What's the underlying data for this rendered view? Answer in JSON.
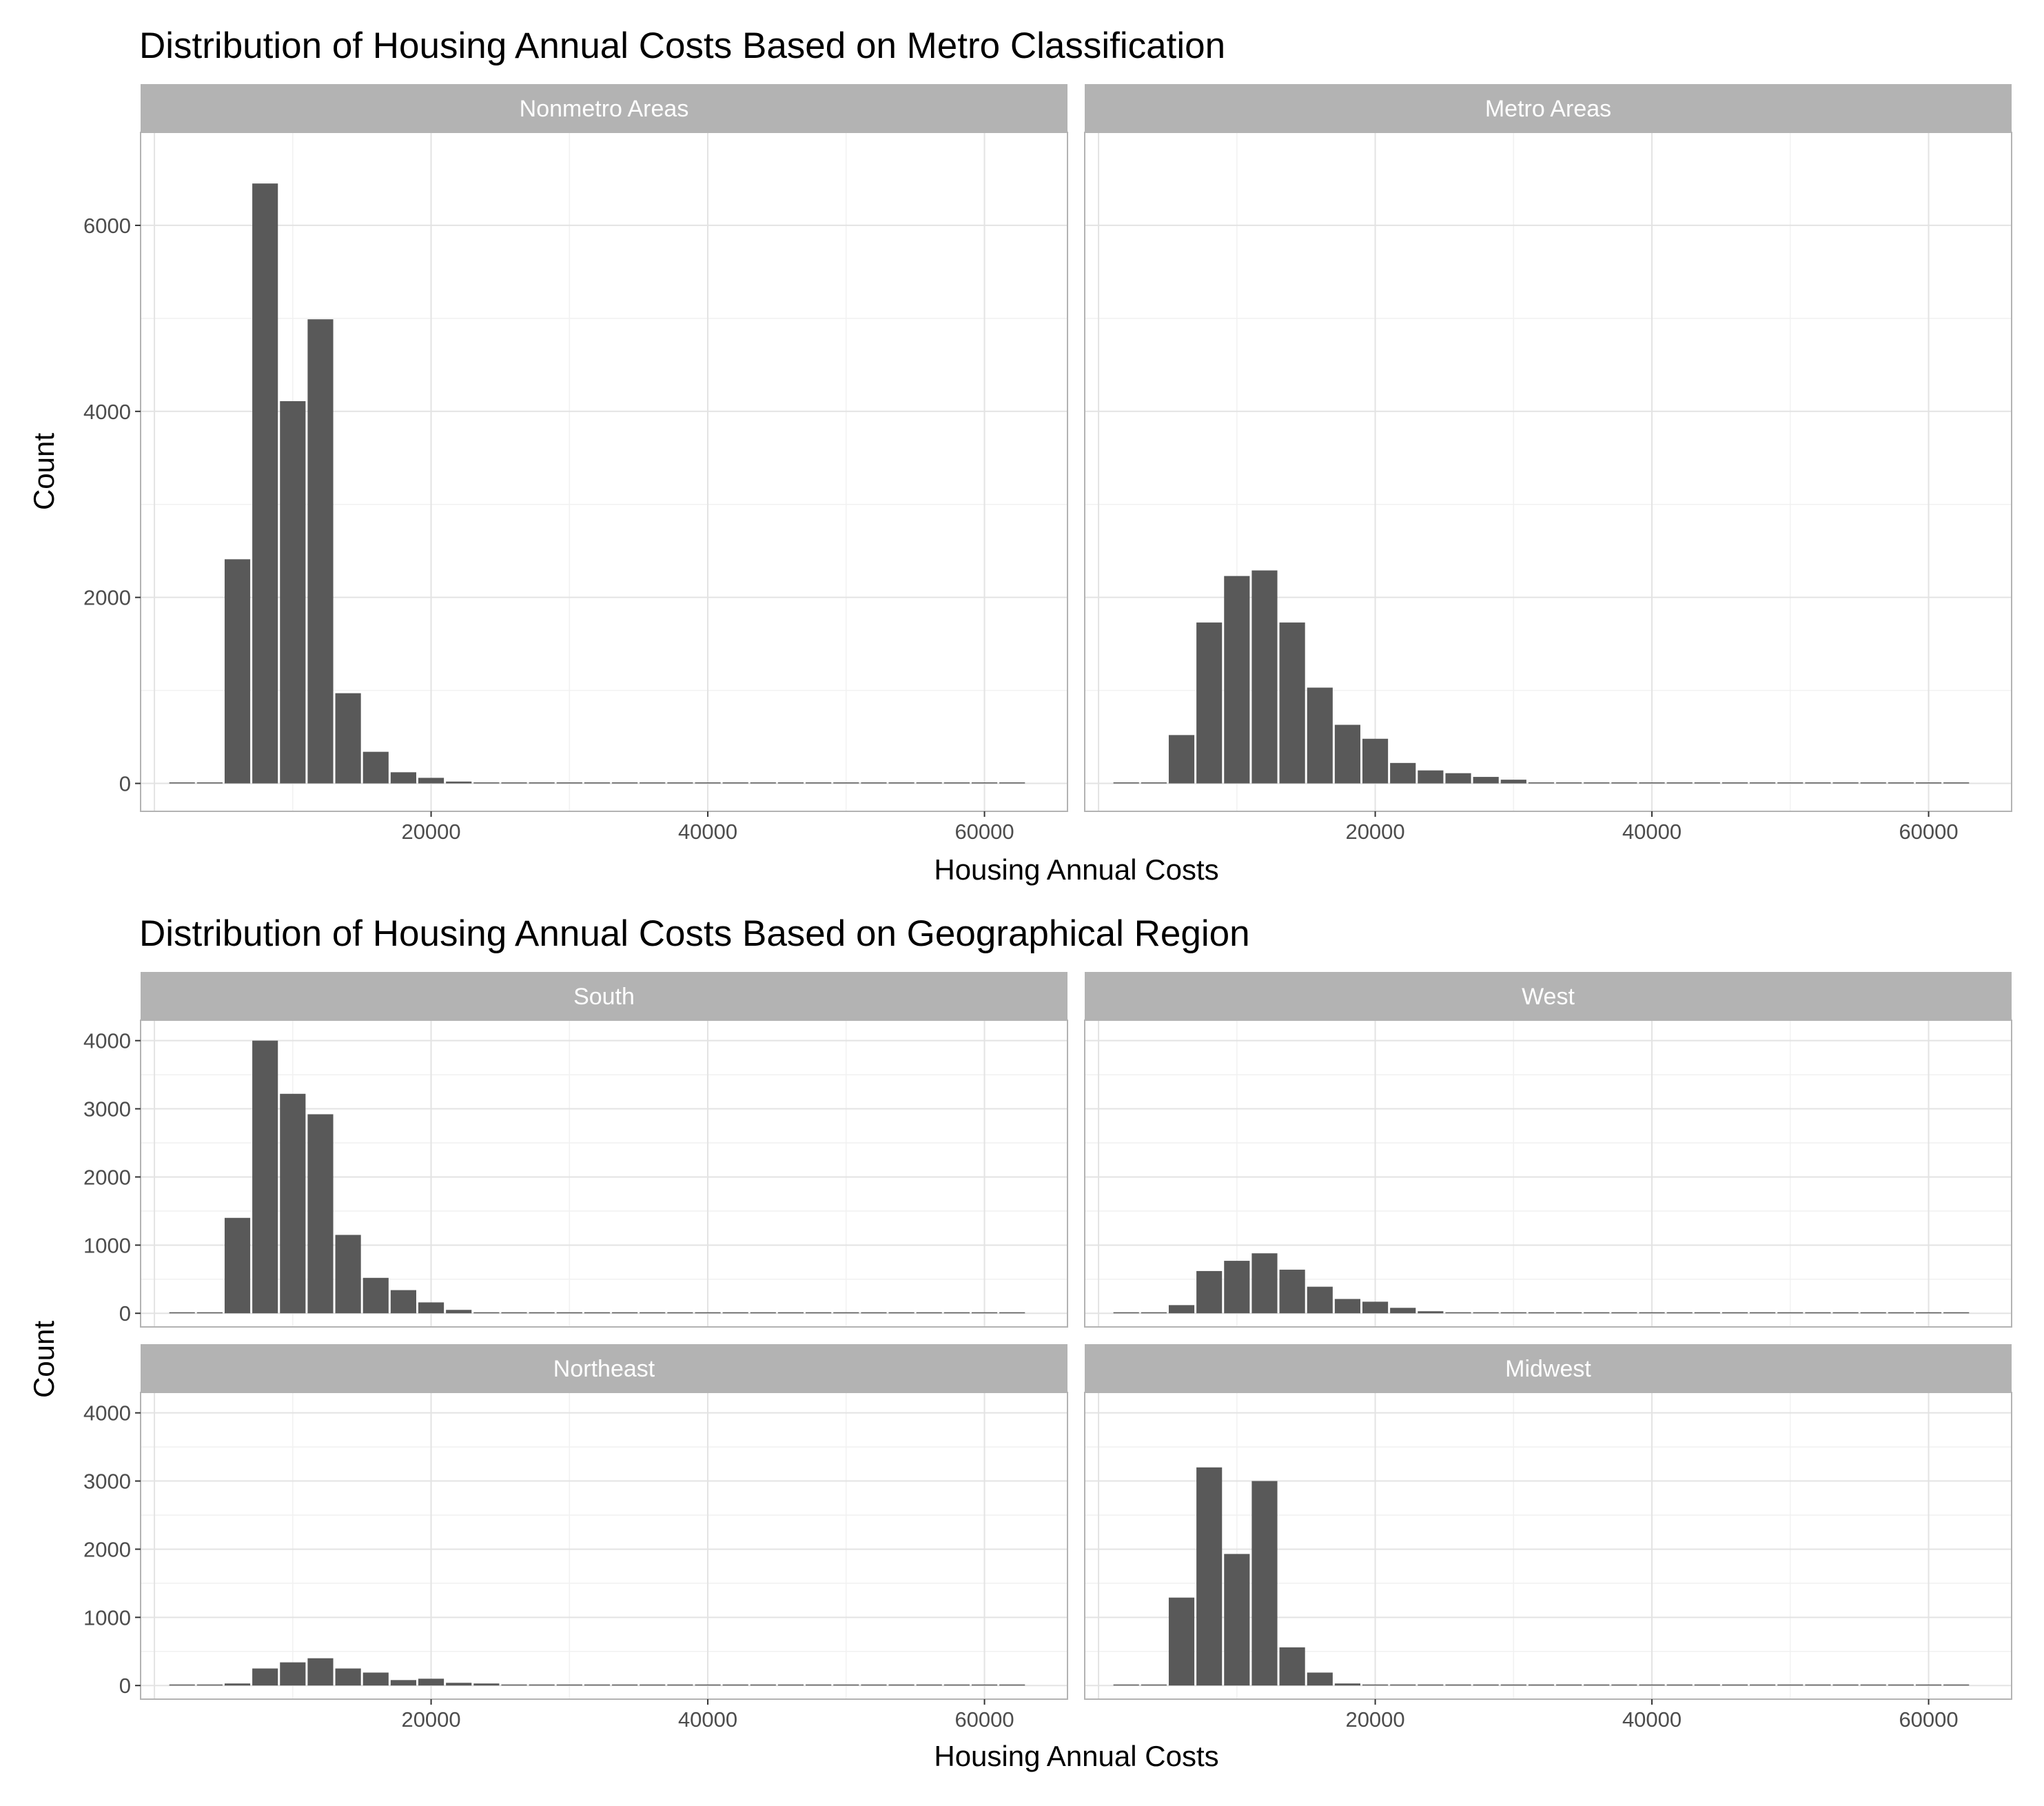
{
  "chart_data": [
    {
      "type": "bar",
      "title": "Distribution of Housing Annual Costs Based on Metro Classification",
      "xlabel": "Housing Annual Costs",
      "ylabel": "Count",
      "xlim": [
        -1000,
        66000
      ],
      "ylim": [
        -300,
        7000
      ],
      "xticks": [
        20000,
        40000,
        60000
      ],
      "yticks": [
        0,
        2000,
        4000,
        6000
      ],
      "grid": true,
      "panels": [
        {
          "name": "Nonmetro Areas",
          "bins": [
            2000,
            4000,
            6000,
            8000,
            10000,
            12000,
            14000,
            16000,
            18000,
            20000,
            22000,
            24000,
            26000,
            28000,
            30000,
            32000,
            34000,
            36000,
            38000,
            40000,
            42000,
            44000,
            46000,
            48000,
            50000,
            52000,
            54000,
            56000,
            58000,
            60000,
            62000
          ],
          "values": [
            2,
            0,
            2410,
            6450,
            4110,
            4990,
            970,
            340,
            120,
            60,
            20,
            5,
            0,
            0,
            0,
            0,
            0,
            0,
            0,
            0,
            0,
            0,
            0,
            0,
            0,
            0,
            0,
            0,
            0,
            0,
            2
          ]
        },
        {
          "name": "Metro Areas",
          "bins": [
            2000,
            4000,
            6000,
            8000,
            10000,
            12000,
            14000,
            16000,
            18000,
            20000,
            22000,
            24000,
            26000,
            28000,
            30000,
            32000,
            34000,
            36000,
            38000,
            40000,
            42000,
            44000,
            46000,
            48000,
            50000,
            52000,
            54000,
            56000,
            58000,
            60000,
            62000
          ],
          "values": [
            2,
            0,
            520,
            1730,
            2230,
            2290,
            1730,
            1030,
            630,
            480,
            220,
            140,
            110,
            70,
            40,
            0,
            0,
            0,
            0,
            0,
            0,
            0,
            0,
            0,
            0,
            0,
            0,
            0,
            0,
            0,
            2
          ]
        }
      ]
    },
    {
      "type": "bar",
      "title": "Distribution of Housing Annual Costs Based on Geographical Region",
      "xlabel": "Housing Annual Costs",
      "ylabel": "Count",
      "xlim": [
        -1000,
        66000
      ],
      "ylim": [
        -200,
        4300
      ],
      "xticks": [
        20000,
        40000,
        60000
      ],
      "yticks": [
        0,
        1000,
        2000,
        3000,
        4000
      ],
      "grid": true,
      "panels": [
        {
          "name": "South",
          "bins": [
            2000,
            4000,
            6000,
            8000,
            10000,
            12000,
            14000,
            16000,
            18000,
            20000,
            22000,
            24000,
            26000,
            28000,
            30000,
            32000,
            34000,
            36000,
            38000,
            40000,
            42000,
            44000,
            46000,
            48000,
            50000,
            52000,
            54000,
            56000,
            58000,
            60000,
            62000
          ],
          "values": [
            2,
            0,
            1400,
            4000,
            3220,
            2920,
            1150,
            520,
            340,
            160,
            50,
            15,
            0,
            0,
            0,
            0,
            0,
            0,
            0,
            0,
            0,
            0,
            0,
            0,
            0,
            0,
            0,
            0,
            0,
            0,
            2
          ]
        },
        {
          "name": "West",
          "bins": [
            2000,
            4000,
            6000,
            8000,
            10000,
            12000,
            14000,
            16000,
            18000,
            20000,
            22000,
            24000,
            26000,
            28000,
            30000,
            32000,
            34000,
            36000,
            38000,
            40000,
            42000,
            44000,
            46000,
            48000,
            50000,
            52000,
            54000,
            56000,
            58000,
            60000,
            62000
          ],
          "values": [
            2,
            0,
            120,
            620,
            770,
            880,
            640,
            390,
            210,
            170,
            80,
            30,
            15,
            0,
            0,
            0,
            0,
            0,
            0,
            0,
            0,
            0,
            0,
            0,
            0,
            0,
            0,
            0,
            0,
            0,
            2
          ]
        },
        {
          "name": "Northeast",
          "bins": [
            2000,
            4000,
            6000,
            8000,
            10000,
            12000,
            14000,
            16000,
            18000,
            20000,
            22000,
            24000,
            26000,
            28000,
            30000,
            32000,
            34000,
            36000,
            38000,
            40000,
            42000,
            44000,
            46000,
            48000,
            50000,
            52000,
            54000,
            56000,
            58000,
            60000,
            62000
          ],
          "values": [
            2,
            0,
            30,
            250,
            340,
            400,
            250,
            190,
            80,
            100,
            40,
            30,
            10,
            0,
            0,
            0,
            0,
            0,
            0,
            0,
            0,
            0,
            0,
            0,
            0,
            0,
            0,
            0,
            0,
            0,
            2
          ]
        },
        {
          "name": "Midwest",
          "bins": [
            2000,
            4000,
            6000,
            8000,
            10000,
            12000,
            14000,
            16000,
            18000,
            20000,
            22000,
            24000,
            26000,
            28000,
            30000,
            32000,
            34000,
            36000,
            38000,
            40000,
            42000,
            44000,
            46000,
            48000,
            50000,
            52000,
            54000,
            56000,
            58000,
            60000,
            62000
          ],
          "values": [
            2,
            0,
            1290,
            3200,
            1930,
            3000,
            560,
            190,
            30,
            15,
            0,
            0,
            0,
            0,
            0,
            0,
            0,
            0,
            0,
            0,
            0,
            0,
            0,
            0,
            0,
            0,
            0,
            0,
            0,
            0,
            2
          ]
        }
      ]
    }
  ],
  "colors": {
    "bar": "#595959",
    "strip": "#b3b3b3",
    "strip_text": "#ffffff",
    "grid_major": "#e3e3e3",
    "grid_minor": "#f1f1f1",
    "panel_border": "#b3b3b3",
    "tick_text": "#4d4d4d"
  }
}
